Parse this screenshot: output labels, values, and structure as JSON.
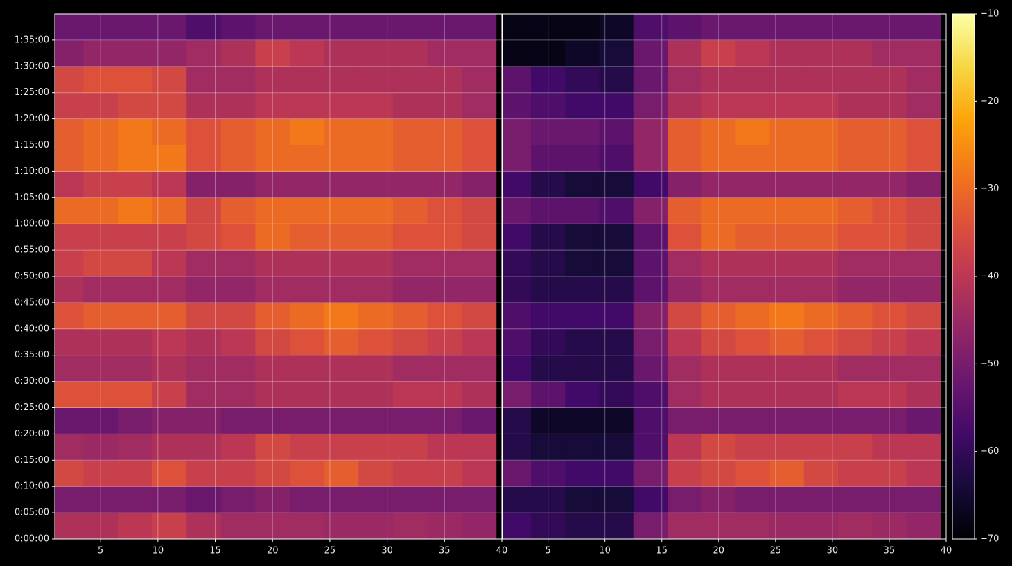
{
  "chart_data": [
    {
      "type": "heatmap",
      "colormap": "inferno",
      "grid": true,
      "x": [
        2,
        5,
        8,
        11,
        14,
        17,
        20,
        23,
        26,
        29,
        32,
        35,
        38
      ],
      "y": [
        150,
        450,
        750,
        1050,
        1350,
        1650,
        1950,
        2250,
        2550,
        2850,
        3150,
        3450,
        3750,
        4050,
        4350,
        4650,
        4950,
        5250,
        5550,
        5850
      ],
      "xlim": [
        1,
        40
      ],
      "ylim": [
        0,
        6000
      ],
      "xticks": [
        5,
        10,
        15,
        20,
        25,
        30,
        35,
        40
      ],
      "yticks": [
        {
          "value": 0,
          "label": "0:00:00"
        },
        {
          "value": 300,
          "label": "0:05:00"
        },
        {
          "value": 600,
          "label": "0:10:00"
        },
        {
          "value": 900,
          "label": "0:15:00"
        },
        {
          "value": 1200,
          "label": "0:20:00"
        },
        {
          "value": 1500,
          "label": "0:25:00"
        },
        {
          "value": 1800,
          "label": "0:30:00"
        },
        {
          "value": 2100,
          "label": "0:35:00"
        },
        {
          "value": 2400,
          "label": "0:40:00"
        },
        {
          "value": 2700,
          "label": "0:45:00"
        },
        {
          "value": 3000,
          "label": "0:50:00"
        },
        {
          "value": 3300,
          "label": "0:55:00"
        },
        {
          "value": 3600,
          "label": "1:00:00"
        },
        {
          "value": 3900,
          "label": "1:05:00"
        },
        {
          "value": 4200,
          "label": "1:10:00"
        },
        {
          "value": 4500,
          "label": "1:15:00"
        },
        {
          "value": 4800,
          "label": "1:20:00"
        },
        {
          "value": 5100,
          "label": "1:25:00"
        },
        {
          "value": 5400,
          "label": "1:30:00"
        },
        {
          "value": 5700,
          "label": "1:35:00"
        }
      ],
      "values": [
        [
          -42,
          -42,
          -40,
          -38,
          -42,
          -44,
          -44,
          -44,
          -45,
          -45,
          -44,
          -45,
          -46
        ],
        [
          -50,
          -50,
          -50,
          -50,
          -52,
          -50,
          -48,
          -50,
          -50,
          -50,
          -50,
          -50,
          -50
        ],
        [
          -36,
          -38,
          -38,
          -34,
          -38,
          -38,
          -36,
          -34,
          -32,
          -36,
          -38,
          -38,
          -40
        ],
        [
          -44,
          -45,
          -44,
          -42,
          -42,
          -40,
          -36,
          -38,
          -38,
          -38,
          -38,
          -40,
          -40
        ],
        [
          -52,
          -52,
          -50,
          -48,
          -48,
          -50,
          -50,
          -50,
          -50,
          -50,
          -50,
          -50,
          -52
        ],
        [
          -34,
          -34,
          -34,
          -38,
          -44,
          -44,
          -42,
          -42,
          -42,
          -42,
          -40,
          -40,
          -42
        ],
        [
          -44,
          -44,
          -44,
          -42,
          -44,
          -44,
          -42,
          -42,
          -42,
          -42,
          -44,
          -44,
          -44
        ],
        [
          -42,
          -42,
          -42,
          -40,
          -42,
          -40,
          -36,
          -34,
          -32,
          -34,
          -36,
          -38,
          -40
        ],
        [
          -34,
          -32,
          -32,
          -32,
          -36,
          -36,
          -32,
          -30,
          -28,
          -30,
          -32,
          -34,
          -36
        ],
        [
          -42,
          -44,
          -44,
          -44,
          -46,
          -46,
          -44,
          -44,
          -44,
          -44,
          -46,
          -46,
          -46
        ],
        [
          -38,
          -36,
          -36,
          -40,
          -44,
          -44,
          -42,
          -42,
          -42,
          -42,
          -44,
          -44,
          -44
        ],
        [
          -38,
          -38,
          -38,
          -38,
          -36,
          -34,
          -30,
          -32,
          -32,
          -32,
          -34,
          -34,
          -36
        ],
        [
          -30,
          -30,
          -28,
          -30,
          -36,
          -32,
          -30,
          -30,
          -30,
          -30,
          -32,
          -34,
          -36
        ],
        [
          -40,
          -38,
          -38,
          -40,
          -48,
          -48,
          -46,
          -46,
          -46,
          -46,
          -46,
          -46,
          -48
        ],
        [
          -32,
          -30,
          -28,
          -28,
          -34,
          -32,
          -30,
          -30,
          -30,
          -30,
          -32,
          -32,
          -34
        ],
        [
          -32,
          -30,
          -28,
          -30,
          -34,
          -32,
          -30,
          -28,
          -30,
          -30,
          -32,
          -32,
          -34
        ],
        [
          -38,
          -38,
          -36,
          -36,
          -42,
          -42,
          -40,
          -40,
          -40,
          -40,
          -42,
          -42,
          -44
        ],
        [
          -36,
          -34,
          -34,
          -36,
          -44,
          -44,
          -42,
          -42,
          -42,
          -42,
          -42,
          -42,
          -44
        ],
        [
          -48,
          -46,
          -46,
          -46,
          -44,
          -42,
          -38,
          -40,
          -42,
          -42,
          -42,
          -44,
          -44
        ],
        [
          -52,
          -52,
          -52,
          -52,
          -56,
          -54,
          -52,
          -52,
          -52,
          -52,
          -52,
          -52,
          -52
        ]
      ]
    },
    {
      "type": "heatmap",
      "colormap": "inferno",
      "grid": true,
      "x": [
        2,
        5,
        8,
        11,
        14,
        17,
        20,
        23,
        26,
        29,
        32,
        35,
        38
      ],
      "y": [
        150,
        450,
        750,
        1050,
        1350,
        1650,
        1950,
        2250,
        2550,
        2850,
        3150,
        3450,
        3750,
        4050,
        4350,
        4650,
        4950,
        5250,
        5550,
        5850
      ],
      "xlim": [
        1,
        40
      ],
      "ylim": [
        0,
        6000
      ],
      "xticks": [
        5,
        10,
        15,
        20,
        25,
        30,
        35,
        40
      ],
      "colorbar": {
        "lim": [
          -70,
          -10
        ],
        "ticks": [
          {
            "value": -70,
            "label": "−70"
          },
          {
            "value": -60,
            "label": "−60"
          },
          {
            "value": -50,
            "label": "−50"
          },
          {
            "value": -40,
            "label": "−40"
          },
          {
            "value": -30,
            "label": "−30"
          },
          {
            "value": -20,
            "label": "−20"
          },
          {
            "value": -10,
            "label": "−10"
          }
        ]
      },
      "values": [
        [
          -58,
          -60,
          -62,
          -62,
          -50,
          -44,
          -44,
          -44,
          -45,
          -45,
          -44,
          -45,
          -46
        ],
        [
          -62,
          -62,
          -64,
          -64,
          -58,
          -50,
          -48,
          -50,
          -50,
          -50,
          -50,
          -50,
          -50
        ],
        [
          -52,
          -56,
          -58,
          -58,
          -50,
          -38,
          -36,
          -34,
          -32,
          -36,
          -38,
          -38,
          -40
        ],
        [
          -62,
          -64,
          -64,
          -64,
          -56,
          -40,
          -36,
          -38,
          -38,
          -38,
          -38,
          -40,
          -40
        ],
        [
          -62,
          -66,
          -66,
          -66,
          -56,
          -50,
          -50,
          -50,
          -50,
          -50,
          -50,
          -50,
          -52
        ],
        [
          -50,
          -54,
          -58,
          -60,
          -56,
          -44,
          -42,
          -42,
          -42,
          -42,
          -40,
          -40,
          -42
        ],
        [
          -58,
          -62,
          -62,
          -62,
          -52,
          -44,
          -42,
          -42,
          -42,
          -42,
          -44,
          -44,
          -44
        ],
        [
          -56,
          -60,
          -62,
          -62,
          -50,
          -40,
          -36,
          -34,
          -32,
          -34,
          -36,
          -38,
          -40
        ],
        [
          -56,
          -58,
          -58,
          -58,
          -48,
          -36,
          -32,
          -30,
          -28,
          -30,
          -32,
          -34,
          -36
        ],
        [
          -60,
          -62,
          -62,
          -62,
          -54,
          -46,
          -44,
          -44,
          -44,
          -44,
          -46,
          -46,
          -46
        ],
        [
          -60,
          -62,
          -64,
          -64,
          -54,
          -44,
          -42,
          -42,
          -42,
          -42,
          -44,
          -44,
          -44
        ],
        [
          -58,
          -62,
          -64,
          -64,
          -54,
          -34,
          -30,
          -32,
          -32,
          -32,
          -34,
          -34,
          -36
        ],
        [
          -52,
          -54,
          -54,
          -56,
          -48,
          -32,
          -30,
          -30,
          -30,
          -30,
          -32,
          -34,
          -36
        ],
        [
          -58,
          -62,
          -64,
          -64,
          -58,
          -48,
          -46,
          -46,
          -46,
          -46,
          -46,
          -46,
          -48
        ],
        [
          -50,
          -54,
          -54,
          -56,
          -46,
          -32,
          -30,
          -30,
          -30,
          -30,
          -32,
          -32,
          -34
        ],
        [
          -50,
          -52,
          -52,
          -54,
          -46,
          -32,
          -30,
          -28,
          -30,
          -30,
          -32,
          -32,
          -34
        ],
        [
          -54,
          -56,
          -58,
          -58,
          -50,
          -42,
          -40,
          -40,
          -40,
          -40,
          -42,
          -42,
          -44
        ],
        [
          -54,
          -58,
          -60,
          -62,
          -52,
          -44,
          -42,
          -42,
          -42,
          -42,
          -42,
          -42,
          -44
        ],
        [
          -68,
          -68,
          -66,
          -64,
          -52,
          -42,
          -38,
          -40,
          -42,
          -42,
          -42,
          -44,
          -44
        ],
        [
          -68,
          -68,
          -68,
          -66,
          -56,
          -54,
          -52,
          -52,
          -52,
          -52,
          -52,
          -52,
          -52
        ]
      ]
    }
  ]
}
